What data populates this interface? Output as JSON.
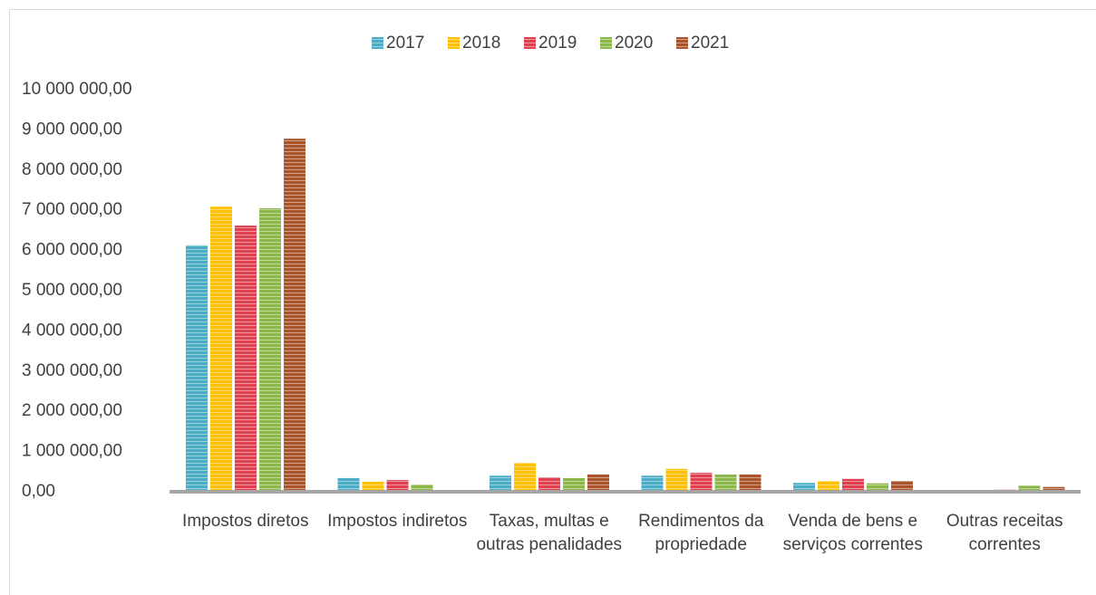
{
  "chart_data": {
    "type": "bar",
    "categories": [
      "Impostos diretos",
      "Impostos indiretos",
      "Taxas, multas e outras penalidades",
      "Rendimentos da propriedade",
      "Venda de bens e serviços correntes",
      "Outras receitas correntes"
    ],
    "series": [
      {
        "name": "2017",
        "color": "#4bacc6",
        "values": [
          6130000,
          340000,
          400000,
          400000,
          220000,
          10000
        ]
      },
      {
        "name": "2018",
        "color": "#ffc000",
        "values": [
          7090000,
          250000,
          720000,
          570000,
          270000,
          40000
        ]
      },
      {
        "name": "2019",
        "color": "#e0404f",
        "values": [
          6620000,
          290000,
          360000,
          470000,
          320000,
          50000
        ]
      },
      {
        "name": "2020",
        "color": "#8cb84a",
        "values": [
          7050000,
          180000,
          340000,
          430000,
          210000,
          150000
        ]
      },
      {
        "name": "2021",
        "color": "#a9542b",
        "values": [
          8780000,
          0,
          430000,
          430000,
          270000,
          120000
        ]
      }
    ],
    "ylim": [
      0,
      10000000
    ],
    "yticks": [
      {
        "value": 0,
        "label": "0,00"
      },
      {
        "value": 1000000,
        "label": "1 000 000,00"
      },
      {
        "value": 2000000,
        "label": "2 000 000,00"
      },
      {
        "value": 3000000,
        "label": "3 000 000,00"
      },
      {
        "value": 4000000,
        "label": "4 000 000,00"
      },
      {
        "value": 5000000,
        "label": "5 000 000,00"
      },
      {
        "value": 6000000,
        "label": "6 000 000,00"
      },
      {
        "value": 7000000,
        "label": "7 000 000,00"
      },
      {
        "value": 8000000,
        "label": "8 000 000,00"
      },
      {
        "value": 9000000,
        "label": "9 000 000,00"
      },
      {
        "value": 10000000,
        "label": "10 000 000,00"
      }
    ],
    "legend": "top",
    "grid": false
  }
}
